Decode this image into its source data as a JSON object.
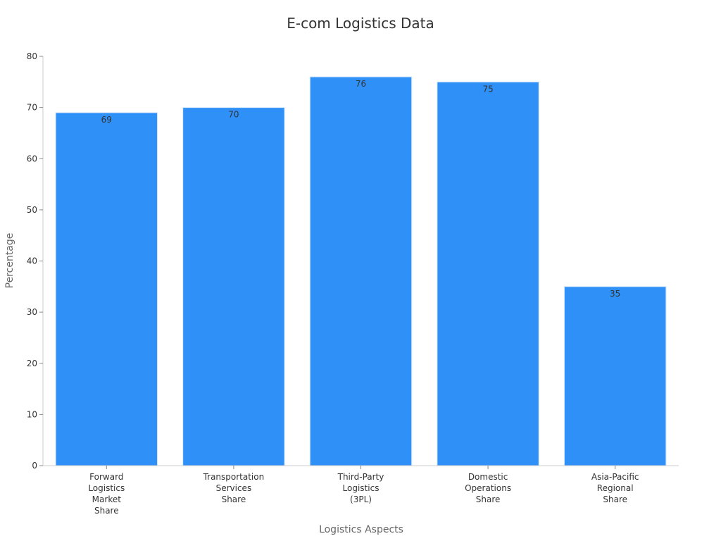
{
  "chart_data": {
    "type": "bar",
    "title": "E-com Logistics Data",
    "xlabel": "Logistics Aspects",
    "ylabel": "Percentage",
    "categories": [
      [
        "Forward",
        "Logistics",
        "Market",
        "Share"
      ],
      [
        "Transportation",
        "Services",
        "Share"
      ],
      [
        "Third-Party",
        "Logistics",
        "(3PL)"
      ],
      [
        "Domestic",
        "Operations",
        "Share"
      ],
      [
        "Asia-Pacific",
        "Regional",
        "Share"
      ]
    ],
    "values": [
      69,
      70,
      76,
      75,
      35
    ],
    "ylim": [
      0,
      80
    ],
    "yticks": [
      0,
      10,
      20,
      30,
      40,
      50,
      60,
      70,
      80
    ],
    "grid": false,
    "legend": "none",
    "bar_color": "#2f91f7",
    "bar_edge_color": "#d9e9fb"
  }
}
